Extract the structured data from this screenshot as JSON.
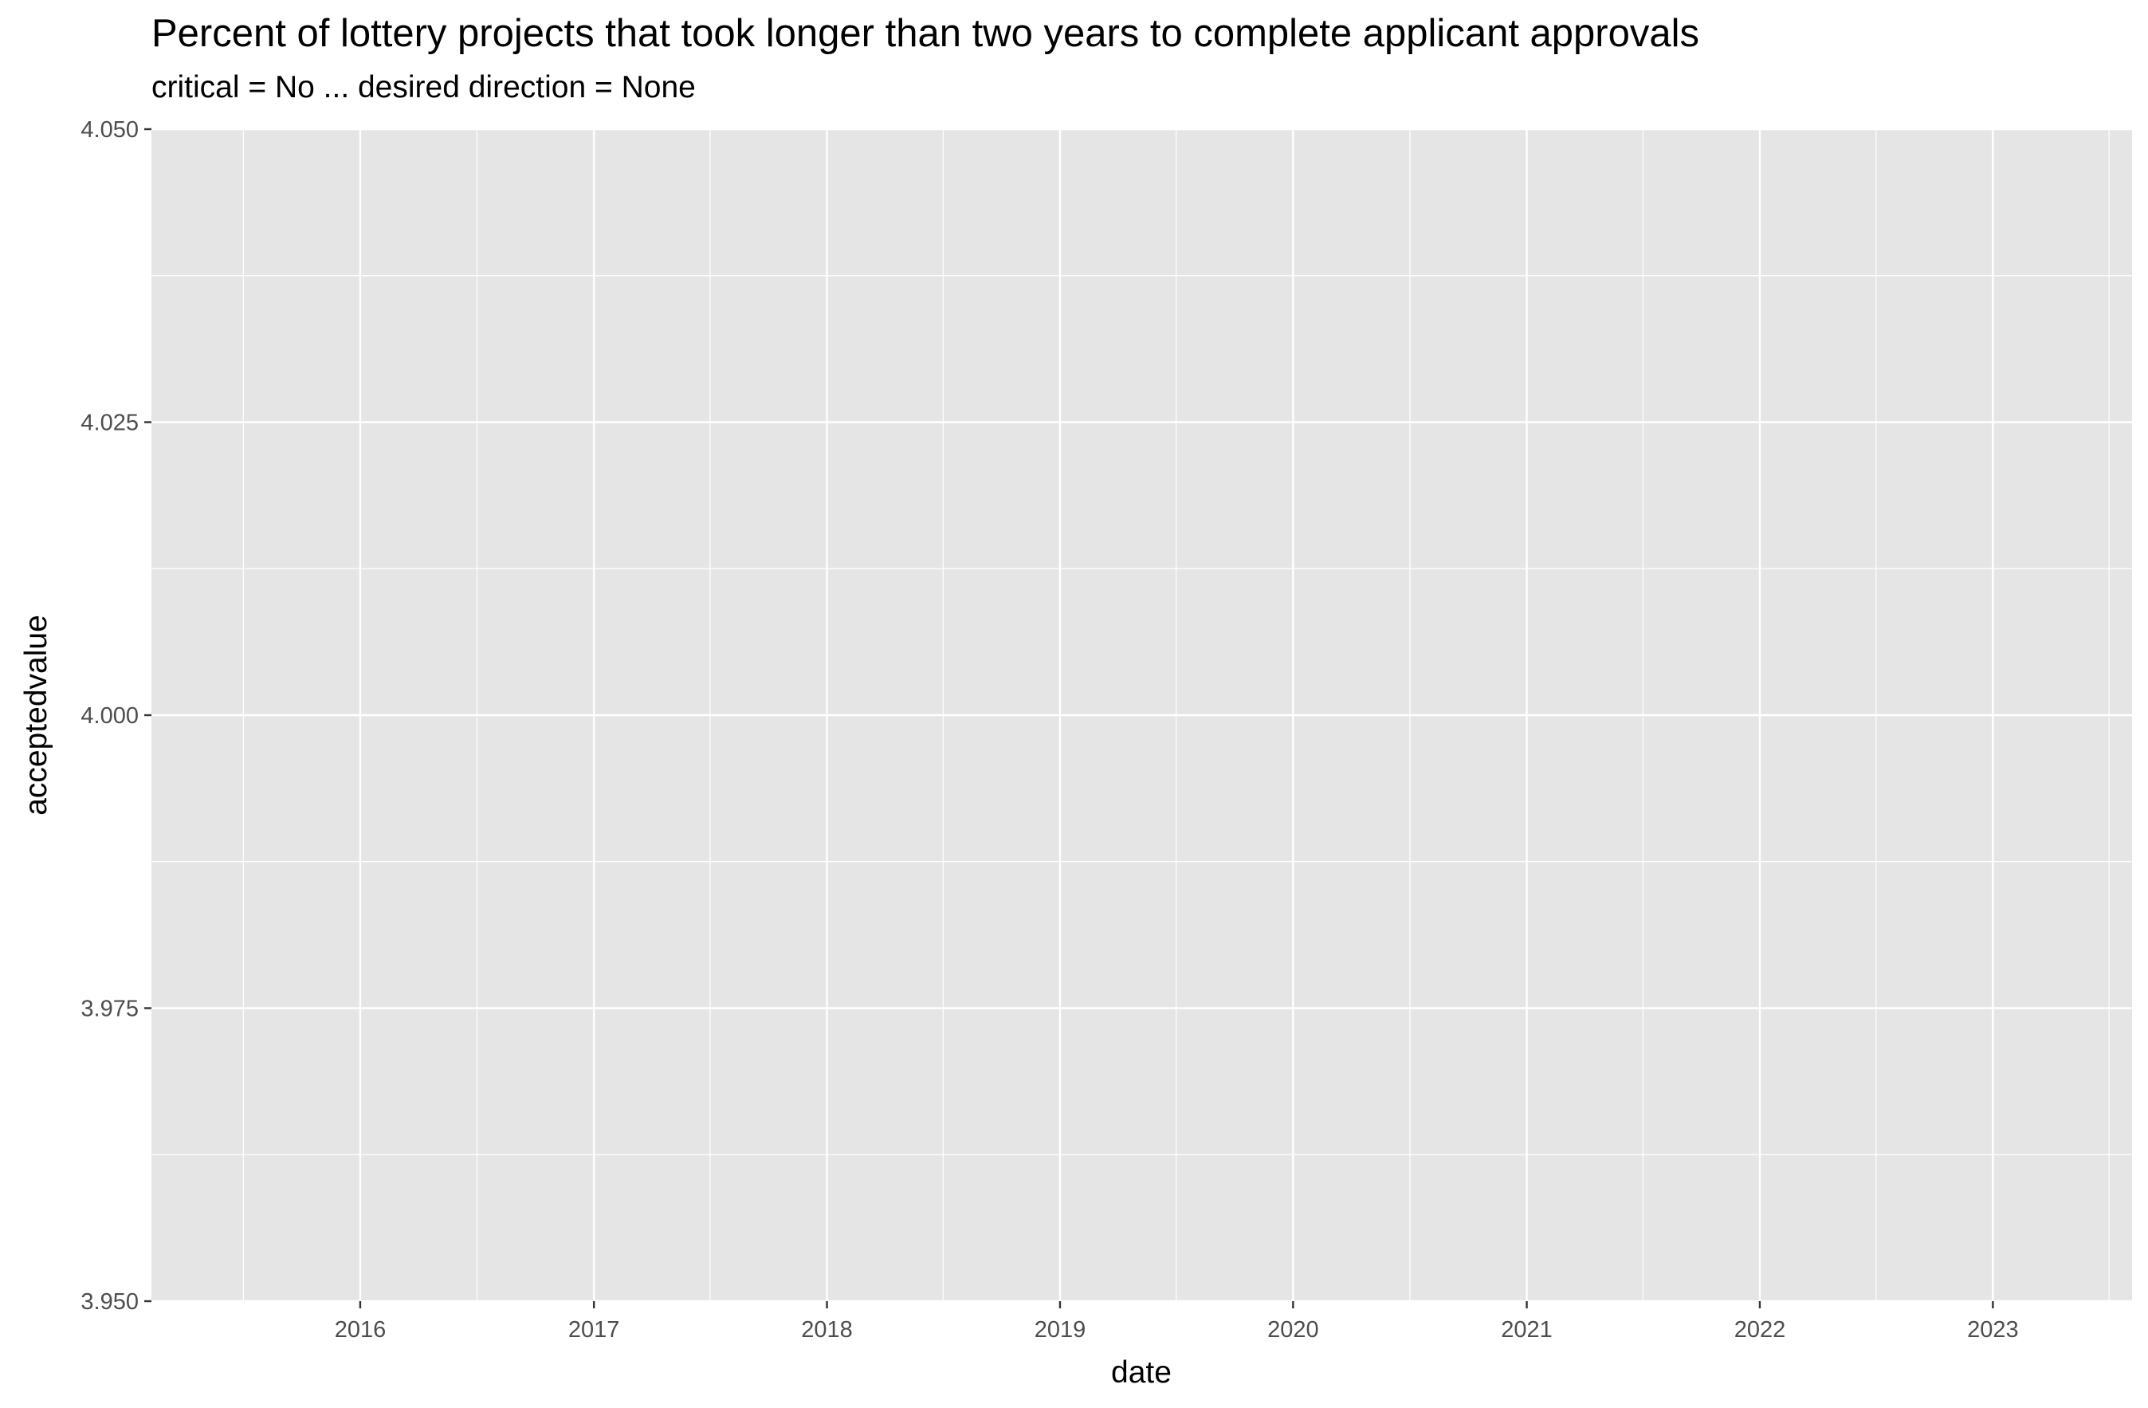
{
  "chart_data": {
    "type": "line",
    "title": "Percent of lottery projects that took longer than two years to complete applicant approvals",
    "subtitle": "critical = No ... desired direction = None",
    "xlabel": "date",
    "ylabel": "acceptedvalue",
    "x_axis_type": "date",
    "xlim": [
      "2015-02-08",
      "2023-08-07"
    ],
    "ylim": [
      3.95,
      4.05
    ],
    "x_ticks": [
      "2016",
      "2017",
      "2018",
      "2019",
      "2020",
      "2021",
      "2022",
      "2023"
    ],
    "y_ticks": [
      "3.950",
      "3.975",
      "4.000",
      "4.025",
      "4.050"
    ],
    "grid": true,
    "legend": "none",
    "series": [],
    "panel_background": "#e5e5e5",
    "grid_color": "#ffffff"
  }
}
